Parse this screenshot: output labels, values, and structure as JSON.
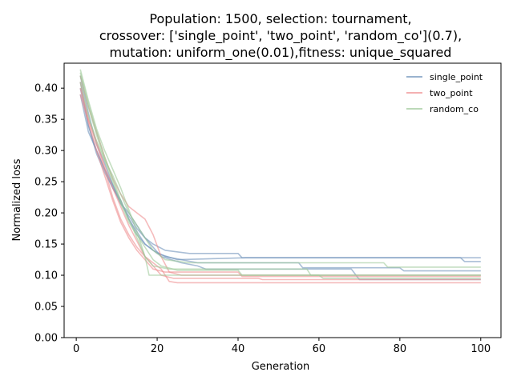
{
  "chart_data": {
    "type": "line",
    "title_lines": [
      "Population: 1500, selection: tournament,",
      "crossover: ['single_point', 'two_point', 'random_co'](0.7),",
      "mutation: uniform_one(0.01),fitness: unique_squared"
    ],
    "xlabel": "Generation",
    "ylabel": "Normalized loss",
    "xlim": [
      -3,
      105
    ],
    "ylim": [
      0,
      0.44
    ],
    "xticks": [
      0,
      20,
      40,
      60,
      80,
      100
    ],
    "xtick_labels": [
      "0",
      "20",
      "40",
      "60",
      "80",
      "100"
    ],
    "yticks": [
      0,
      0.05,
      0.1,
      0.15,
      0.2,
      0.25,
      0.3,
      0.35,
      0.4
    ],
    "ytick_labels": [
      "0.00",
      "0.05",
      "0.10",
      "0.15",
      "0.20",
      "0.25",
      "0.30",
      "0.35",
      "0.40"
    ],
    "grid": false,
    "legend_position": "top-right",
    "legend": [
      {
        "name": "single_point",
        "color": "#6f93ba"
      },
      {
        "name": "two_point",
        "color": "#ef8e90"
      },
      {
        "name": "random_co",
        "color": "#9fc99a"
      }
    ],
    "series": [
      {
        "group": 0,
        "color": "#6f93ba",
        "points": [
          [
            1,
            0.39
          ],
          [
            3,
            0.33
          ],
          [
            5,
            0.3
          ],
          [
            7,
            0.27
          ],
          [
            9,
            0.24
          ],
          [
            11,
            0.22
          ],
          [
            13,
            0.19
          ],
          [
            15,
            0.17
          ],
          [
            17,
            0.15
          ],
          [
            20,
            0.135
          ],
          [
            25,
            0.125
          ],
          [
            42,
            0.128
          ],
          [
            95,
            0.128
          ],
          [
            96,
            0.122
          ],
          [
            100,
            0.122
          ]
        ]
      },
      {
        "group": 0,
        "color": "#6f93ba",
        "points": [
          [
            1,
            0.42
          ],
          [
            3,
            0.36
          ],
          [
            5,
            0.31
          ],
          [
            7,
            0.28
          ],
          [
            9,
            0.245
          ],
          [
            11,
            0.215
          ],
          [
            13,
            0.195
          ],
          [
            15,
            0.175
          ],
          [
            17,
            0.16
          ],
          [
            19,
            0.15
          ],
          [
            22,
            0.14
          ],
          [
            28,
            0.135
          ],
          [
            40,
            0.135
          ],
          [
            41,
            0.128
          ],
          [
            100,
            0.128
          ]
        ]
      },
      {
        "group": 0,
        "color": "#6f93ba",
        "points": [
          [
            1,
            0.41
          ],
          [
            3,
            0.34
          ],
          [
            5,
            0.295
          ],
          [
            7,
            0.265
          ],
          [
            9,
            0.24
          ],
          [
            11,
            0.215
          ],
          [
            13,
            0.2
          ],
          [
            15,
            0.18
          ],
          [
            17,
            0.16
          ],
          [
            19,
            0.145
          ],
          [
            21,
            0.13
          ],
          [
            26,
            0.12
          ],
          [
            30,
            0.115
          ],
          [
            32,
            0.11
          ],
          [
            50,
            0.11
          ],
          [
            68,
            0.11
          ],
          [
            70,
            0.093
          ],
          [
            100,
            0.093
          ]
        ]
      },
      {
        "group": 0,
        "color": "#6f93ba",
        "points": [
          [
            1,
            0.4
          ],
          [
            3,
            0.34
          ],
          [
            5,
            0.3
          ],
          [
            7,
            0.27
          ],
          [
            9,
            0.245
          ],
          [
            11,
            0.22
          ],
          [
            13,
            0.19
          ],
          [
            15,
            0.165
          ],
          [
            17,
            0.15
          ],
          [
            19,
            0.14
          ],
          [
            22,
            0.13
          ],
          [
            30,
            0.12
          ],
          [
            55,
            0.12
          ],
          [
            56,
            0.112
          ],
          [
            80,
            0.112
          ],
          [
            81,
            0.107
          ],
          [
            100,
            0.107
          ]
        ]
      },
      {
        "group": 1,
        "color": "#ef8e90",
        "points": [
          [
            1,
            0.4
          ],
          [
            3,
            0.35
          ],
          [
            5,
            0.31
          ],
          [
            7,
            0.27
          ],
          [
            9,
            0.225
          ],
          [
            11,
            0.19
          ],
          [
            13,
            0.165
          ],
          [
            15,
            0.145
          ],
          [
            17,
            0.13
          ],
          [
            19,
            0.12
          ],
          [
            21,
            0.11
          ],
          [
            23,
            0.09
          ],
          [
            25,
            0.088
          ],
          [
            100,
            0.088
          ]
        ]
      },
      {
        "group": 1,
        "color": "#ef8e90",
        "points": [
          [
            1,
            0.42
          ],
          [
            3,
            0.37
          ],
          [
            5,
            0.33
          ],
          [
            7,
            0.29
          ],
          [
            9,
            0.255
          ],
          [
            11,
            0.23
          ],
          [
            13,
            0.21
          ],
          [
            15,
            0.2
          ],
          [
            17,
            0.19
          ],
          [
            19,
            0.165
          ],
          [
            21,
            0.13
          ],
          [
            23,
            0.105
          ],
          [
            26,
            0.1
          ],
          [
            100,
            0.1
          ]
        ]
      },
      {
        "group": 1,
        "color": "#ef8e90",
        "points": [
          [
            1,
            0.41
          ],
          [
            3,
            0.35
          ],
          [
            5,
            0.315
          ],
          [
            7,
            0.275
          ],
          [
            9,
            0.24
          ],
          [
            11,
            0.21
          ],
          [
            13,
            0.18
          ],
          [
            15,
            0.155
          ],
          [
            17,
            0.13
          ],
          [
            19,
            0.115
          ],
          [
            21,
            0.1
          ],
          [
            24,
            0.095
          ],
          [
            45,
            0.095
          ],
          [
            46,
            0.093
          ],
          [
            100,
            0.093
          ]
        ]
      },
      {
        "group": 1,
        "color": "#ef8e90",
        "points": [
          [
            1,
            0.39
          ],
          [
            3,
            0.345
          ],
          [
            5,
            0.3
          ],
          [
            7,
            0.26
          ],
          [
            9,
            0.22
          ],
          [
            11,
            0.185
          ],
          [
            13,
            0.16
          ],
          [
            15,
            0.14
          ],
          [
            17,
            0.125
          ],
          [
            19,
            0.11
          ],
          [
            22,
            0.105
          ],
          [
            40,
            0.105
          ],
          [
            41,
            0.098
          ],
          [
            100,
            0.098
          ]
        ]
      },
      {
        "group": 2,
        "color": "#9fc99a",
        "points": [
          [
            1,
            0.43
          ],
          [
            3,
            0.38
          ],
          [
            5,
            0.335
          ],
          [
            7,
            0.3
          ],
          [
            9,
            0.27
          ],
          [
            11,
            0.24
          ],
          [
            13,
            0.205
          ],
          [
            15,
            0.17
          ],
          [
            17,
            0.13
          ],
          [
            18,
            0.1
          ],
          [
            22,
            0.1
          ],
          [
            100,
            0.1
          ]
        ]
      },
      {
        "group": 2,
        "color": "#9fc99a",
        "points": [
          [
            1,
            0.42
          ],
          [
            3,
            0.37
          ],
          [
            5,
            0.325
          ],
          [
            7,
            0.285
          ],
          [
            9,
            0.26
          ],
          [
            11,
            0.23
          ],
          [
            13,
            0.2
          ],
          [
            15,
            0.18
          ],
          [
            17,
            0.16
          ],
          [
            19,
            0.14
          ],
          [
            22,
            0.125
          ],
          [
            28,
            0.12
          ],
          [
            76,
            0.12
          ],
          [
            77,
            0.113
          ],
          [
            100,
            0.113
          ]
        ]
      },
      {
        "group": 2,
        "color": "#9fc99a",
        "points": [
          [
            1,
            0.425
          ],
          [
            3,
            0.375
          ],
          [
            5,
            0.33
          ],
          [
            7,
            0.29
          ],
          [
            9,
            0.255
          ],
          [
            11,
            0.22
          ],
          [
            13,
            0.19
          ],
          [
            15,
            0.16
          ],
          [
            17,
            0.13
          ],
          [
            19,
            0.115
          ],
          [
            23,
            0.11
          ],
          [
            57,
            0.11
          ],
          [
            58,
            0.1
          ],
          [
            100,
            0.1
          ]
        ]
      },
      {
        "group": 2,
        "color": "#9fc99a",
        "points": [
          [
            1,
            0.41
          ],
          [
            3,
            0.355
          ],
          [
            5,
            0.315
          ],
          [
            7,
            0.285
          ],
          [
            9,
            0.25
          ],
          [
            11,
            0.215
          ],
          [
            13,
            0.185
          ],
          [
            15,
            0.165
          ],
          [
            17,
            0.145
          ],
          [
            19,
            0.125
          ],
          [
            21,
            0.115
          ],
          [
            25,
            0.108
          ],
          [
            40,
            0.108
          ],
          [
            41,
            0.1
          ],
          [
            60,
            0.1
          ],
          [
            61,
            0.095
          ],
          [
            100,
            0.095
          ]
        ]
      }
    ]
  }
}
